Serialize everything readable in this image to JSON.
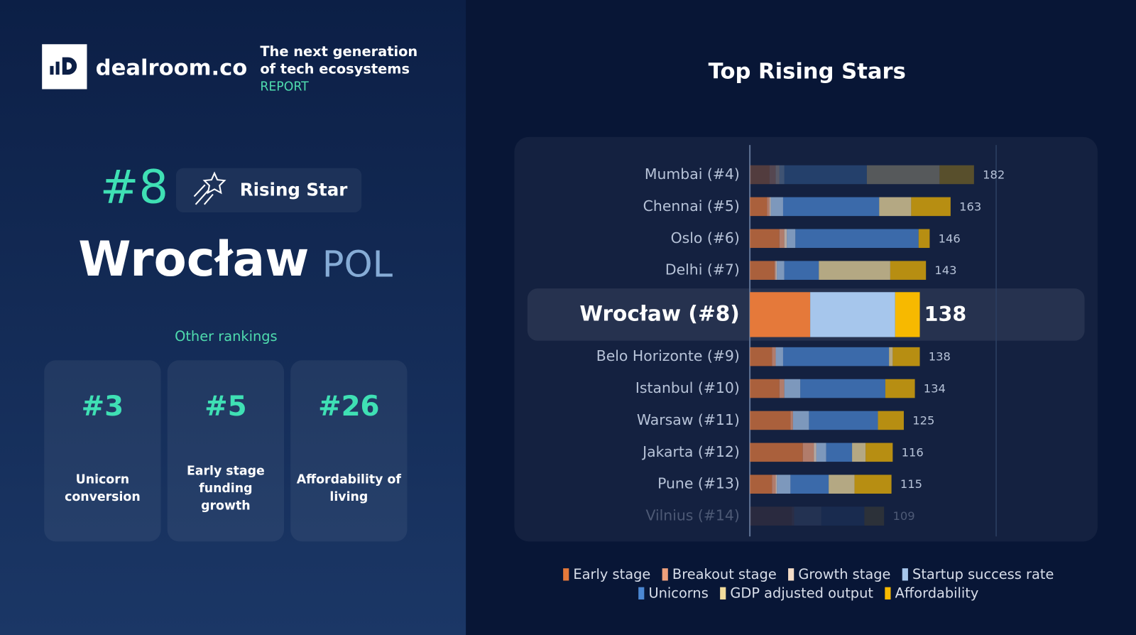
{
  "header": {
    "brand": "dealroom.co",
    "tagline": [
      "The next generation",
      "of tech ecosystems"
    ],
    "tag": "REPORT"
  },
  "city": {
    "rank": "#8",
    "badge": "Rising Star",
    "name": "Wrocław",
    "country": "POL"
  },
  "other_rankings": {
    "title": "Other rankings",
    "items": [
      {
        "rank": "#3",
        "label_lines": [
          "Unicorn",
          "conversion"
        ]
      },
      {
        "rank": "#5",
        "label_lines": [
          "Early stage",
          "funding",
          "growth"
        ]
      },
      {
        "rank": "#26",
        "label_lines": [
          "Affordability of",
          "living"
        ]
      }
    ]
  },
  "chart_data": {
    "type": "stacked_barh",
    "title": "Top Rising Stars",
    "categories": [
      "Mumbai (#4)",
      "Chennai (#5)",
      "Oslo (#6)",
      "Delhi (#7)",
      "Wrocław (#8)",
      "Belo Horizonte (#9)",
      "Istanbul (#10)",
      "Warsaw (#11)",
      "Jakarta (#12)",
      "Pune (#13)",
      "Vilnius (#14)"
    ],
    "totals": [
      182,
      163,
      146,
      143,
      138,
      138,
      134,
      125,
      116,
      115,
      109
    ],
    "xlim": [
      0,
      200
    ],
    "series": [
      {
        "name": "Early stage",
        "color": "#e5793a",
        "values": [
          16,
          14,
          24,
          20,
          49,
          18,
          24,
          33,
          43,
          18,
          34
        ]
      },
      {
        "name": "Breakout  stage",
        "color": "#eea07c",
        "values": [
          5,
          2,
          4,
          1,
          0,
          3,
          4,
          2,
          9,
          3,
          2
        ]
      },
      {
        "name": "Growth stage",
        "color": "#f4dcc6",
        "values": [
          3,
          1,
          2,
          1,
          0,
          0,
          0,
          0,
          2,
          1,
          0
        ]
      },
      {
        "name": "Startup success rate",
        "color": "#a6c6ec",
        "values": [
          4,
          10,
          7,
          6,
          69,
          6,
          13,
          13,
          8,
          11,
          22
        ]
      },
      {
        "name": "Unicorns",
        "color": "#4b87d2",
        "values": [
          67,
          78,
          100,
          28,
          0,
          86,
          69,
          56,
          21,
          31,
          35
        ]
      },
      {
        "name": "GDP adjusted output",
        "color": "#f2dc9c",
        "values": [
          59,
          26,
          0,
          58,
          0,
          3,
          0,
          0,
          11,
          21,
          0
        ]
      },
      {
        "name": "Affordability",
        "color": "#f7b900",
        "values": [
          28,
          32,
          9,
          29,
          20,
          22,
          24,
          21,
          22,
          30,
          16
        ]
      }
    ]
  }
}
